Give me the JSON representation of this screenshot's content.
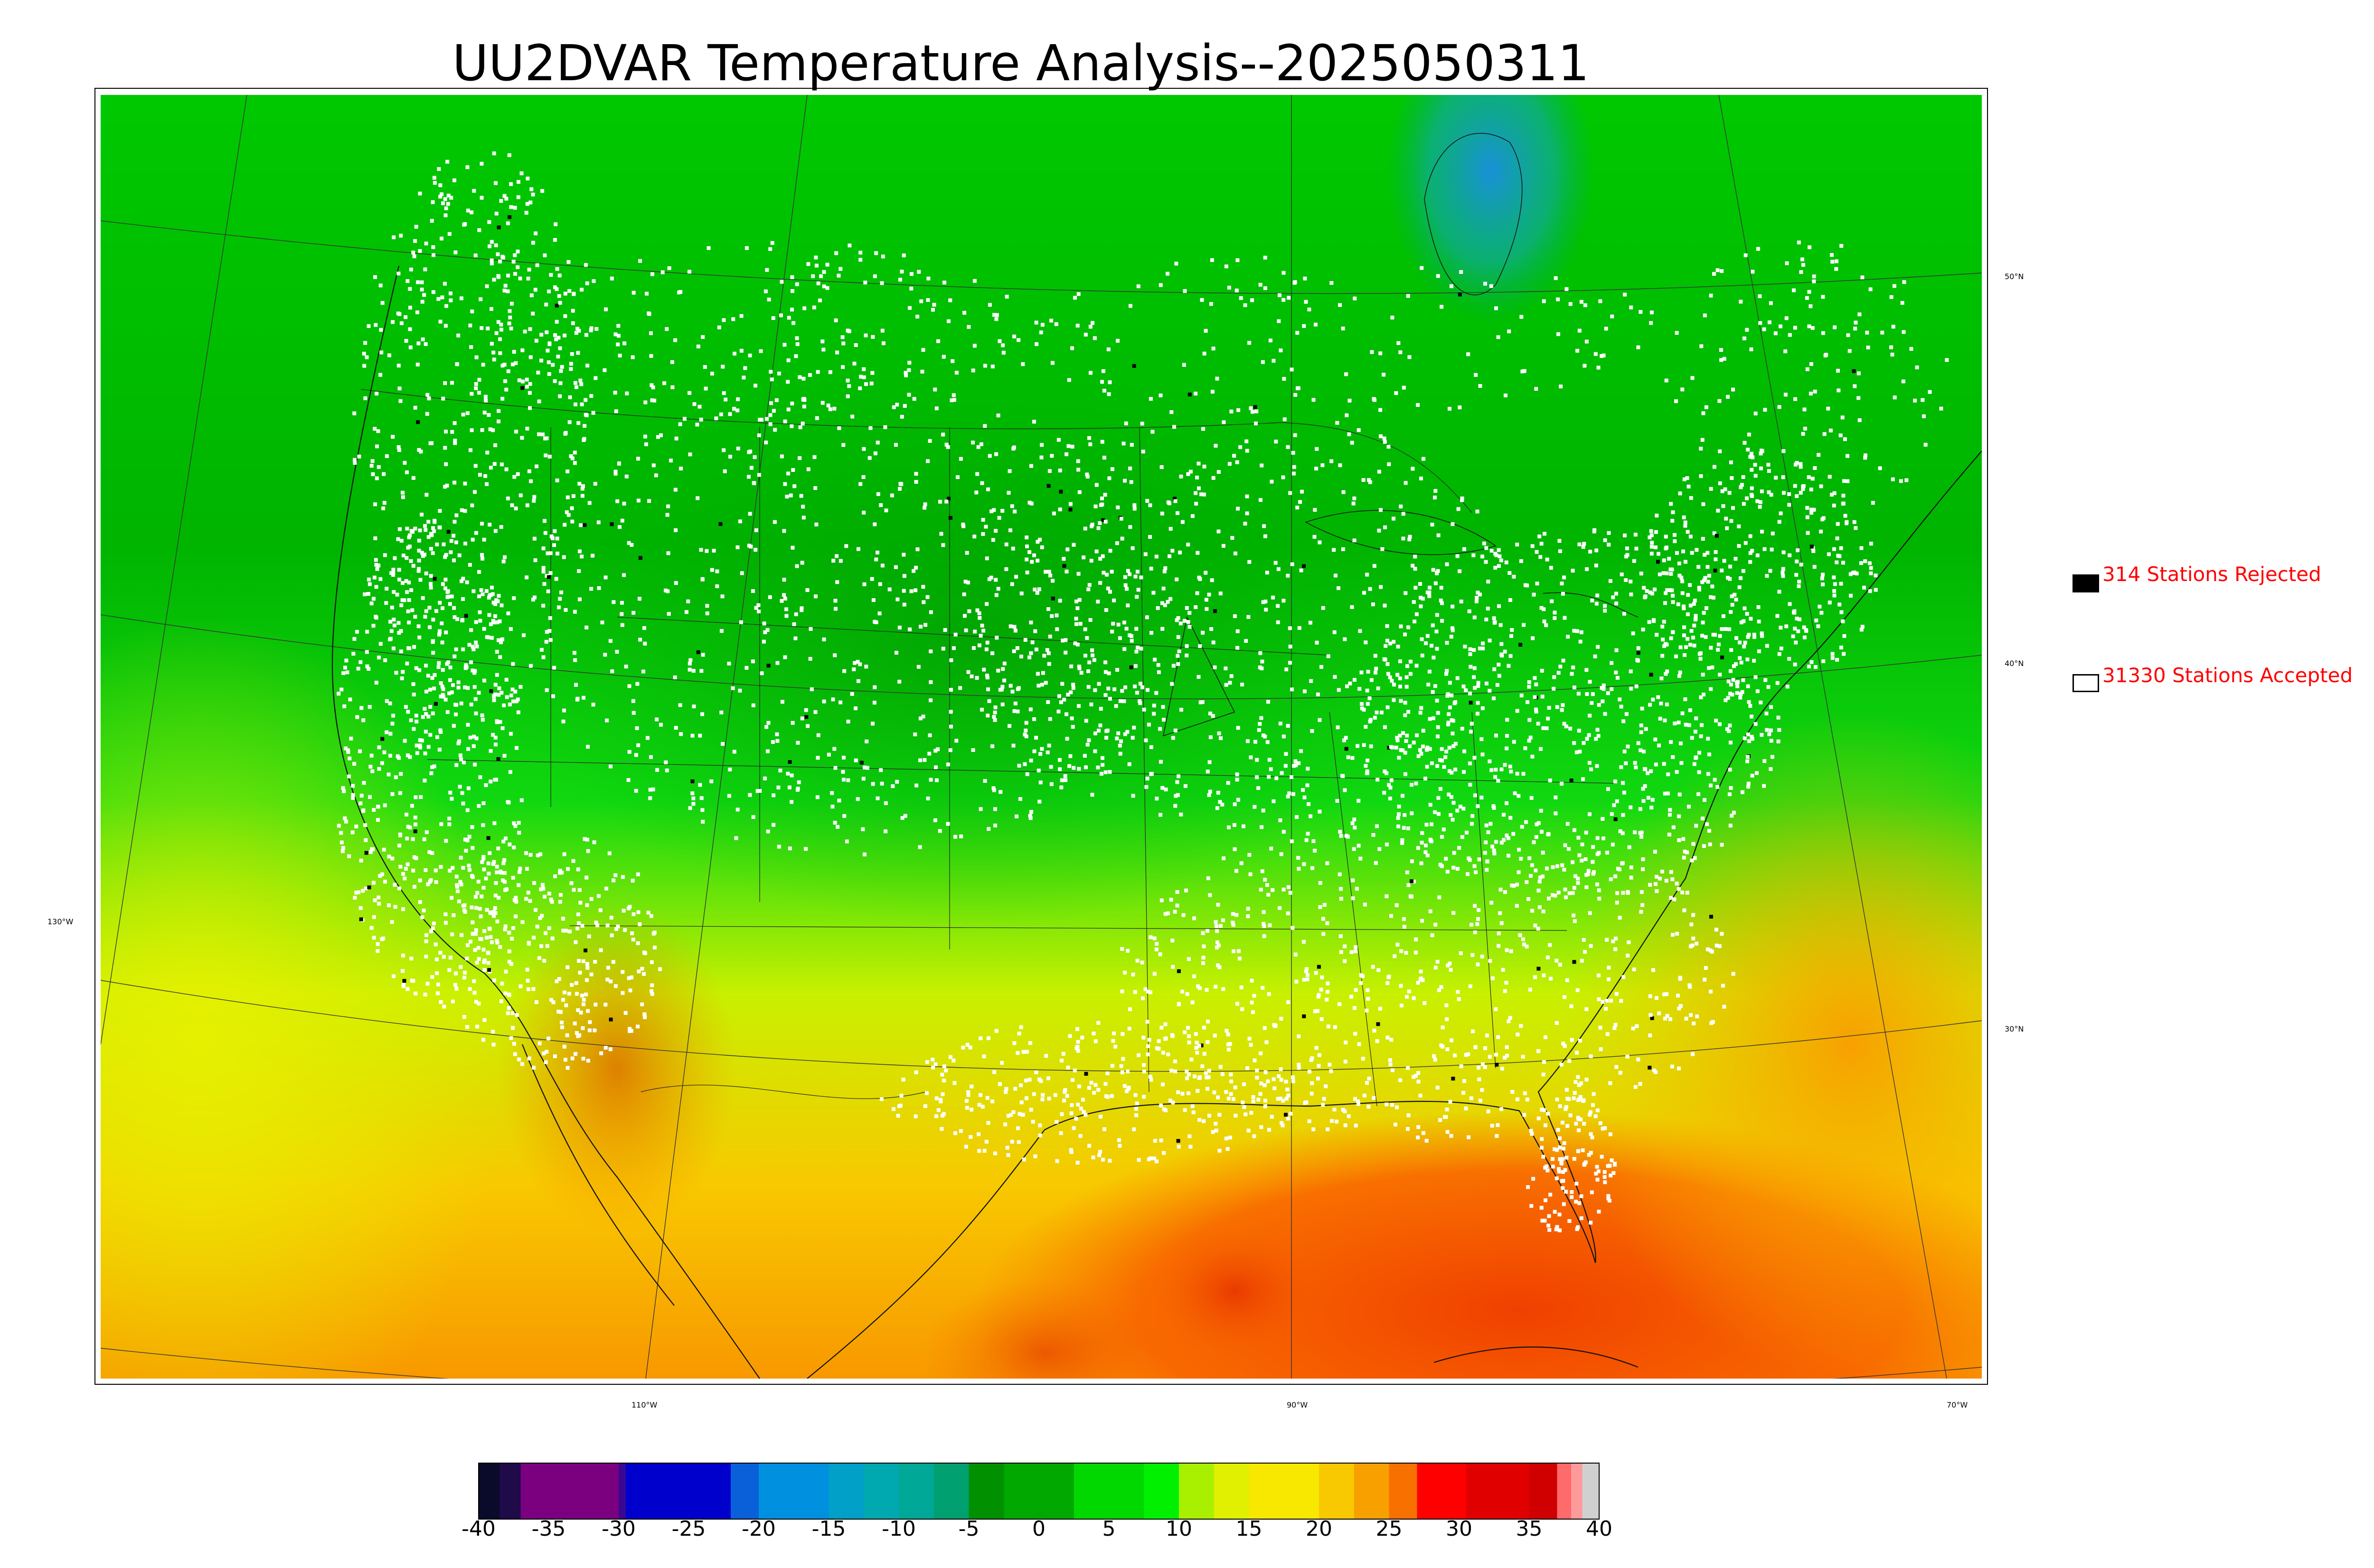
{
  "title": "UU2DVAR Temperature Analysis--2025050311",
  "map": {
    "longitude_labels": [
      "130°W",
      "110°W",
      "90°W",
      "70°W"
    ],
    "latitude_labels": [
      "50°N",
      "40°N",
      "30°N"
    ]
  },
  "legend": {
    "rejected": {
      "label": "314 Stations Rejected",
      "count": 314,
      "swatch_color": "#000000"
    },
    "accepted": {
      "label": "31330 Stations Accepted",
      "count": 31330,
      "swatch_color": "#ffffff"
    }
  },
  "colorbar": {
    "ticks": [
      "-40",
      "-35",
      "-30",
      "-25",
      "-20",
      "-15",
      "-10",
      "-5",
      "0",
      "5",
      "10",
      "15",
      "20",
      "25",
      "30",
      "35",
      "40"
    ],
    "range": [
      -40,
      40
    ],
    "segments": [
      {
        "from": -40,
        "to": -38.5,
        "color": "#0a0a2a"
      },
      {
        "from": -38.5,
        "to": -37,
        "color": "#1f0a4a"
      },
      {
        "from": -37,
        "to": -30,
        "color": "#7a0080"
      },
      {
        "from": -30,
        "to": -29.5,
        "color": "#3a0890"
      },
      {
        "from": -29.5,
        "to": -22,
        "color": "#0000cc"
      },
      {
        "from": -22,
        "to": -20,
        "color": "#0a60d8"
      },
      {
        "from": -20,
        "to": -15,
        "color": "#0090e0"
      },
      {
        "from": -15,
        "to": -12.5,
        "color": "#00a0c8"
      },
      {
        "from": -12.5,
        "to": -10,
        "color": "#00a8b0"
      },
      {
        "from": -10,
        "to": -7.5,
        "color": "#00a898"
      },
      {
        "from": -7.5,
        "to": -5,
        "color": "#00a070"
      },
      {
        "from": -5,
        "to": -2.5,
        "color": "#009000"
      },
      {
        "from": -2.5,
        "to": 2.5,
        "color": "#00a800"
      },
      {
        "from": 2.5,
        "to": 7.5,
        "color": "#00d800"
      },
      {
        "from": 7.5,
        "to": 10,
        "color": "#00f000"
      },
      {
        "from": 10,
        "to": 12.5,
        "color": "#a8f000"
      },
      {
        "from": 12.5,
        "to": 15,
        "color": "#e0f000"
      },
      {
        "from": 15,
        "to": 20,
        "color": "#f8e800"
      },
      {
        "from": 20,
        "to": 22.5,
        "color": "#f8c800"
      },
      {
        "from": 22.5,
        "to": 25,
        "color": "#f8a000"
      },
      {
        "from": 25,
        "to": 27,
        "color": "#f87000"
      },
      {
        "from": 27,
        "to": 30.5,
        "color": "#ff0000"
      },
      {
        "from": 30.5,
        "to": 35,
        "color": "#e00000"
      },
      {
        "from": 35,
        "to": 37,
        "color": "#d00000"
      },
      {
        "from": 37,
        "to": 38,
        "color": "#ff6a6a"
      },
      {
        "from": 38,
        "to": 38.8,
        "color": "#ff9a9a"
      },
      {
        "from": 38.8,
        "to": 40,
        "color": "#d0d0d0"
      }
    ]
  }
}
